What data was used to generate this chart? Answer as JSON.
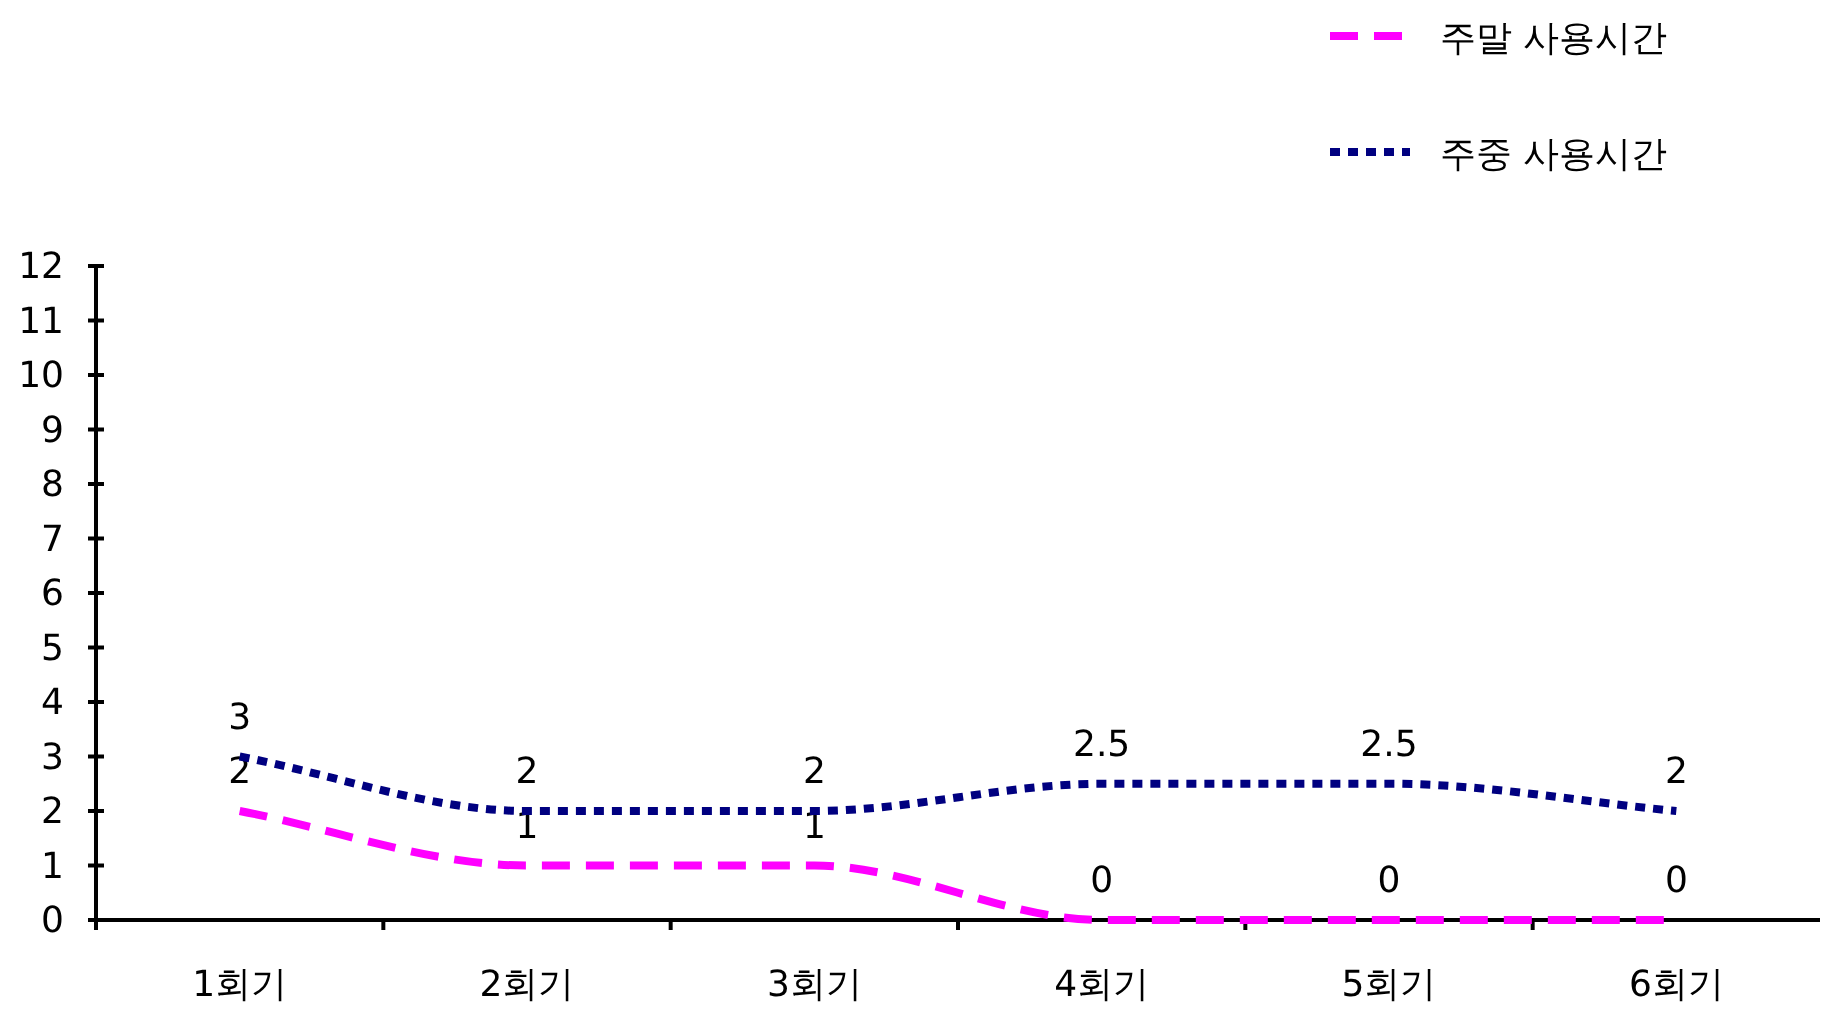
{
  "chart_data": {
    "type": "line",
    "categories": [
      "1회기",
      "2회기",
      "3회기",
      "4회기",
      "5회기",
      "6회기"
    ],
    "series": [
      {
        "name": "주말 사용시간",
        "color": "#ff00ff",
        "line_style": "dashed",
        "values": [
          2,
          1,
          1,
          0,
          0,
          0
        ]
      },
      {
        "name": "주중 사용시간",
        "color": "#000080",
        "line_style": "dotted",
        "values": [
          3,
          2,
          2,
          2.5,
          2.5,
          2
        ]
      }
    ],
    "ylim": [
      0,
      12
    ],
    "yticks": [
      0,
      1,
      2,
      3,
      4,
      5,
      6,
      7,
      8,
      9,
      10,
      11,
      12
    ],
    "grid": false,
    "legend": "top right",
    "data_labels": true
  }
}
